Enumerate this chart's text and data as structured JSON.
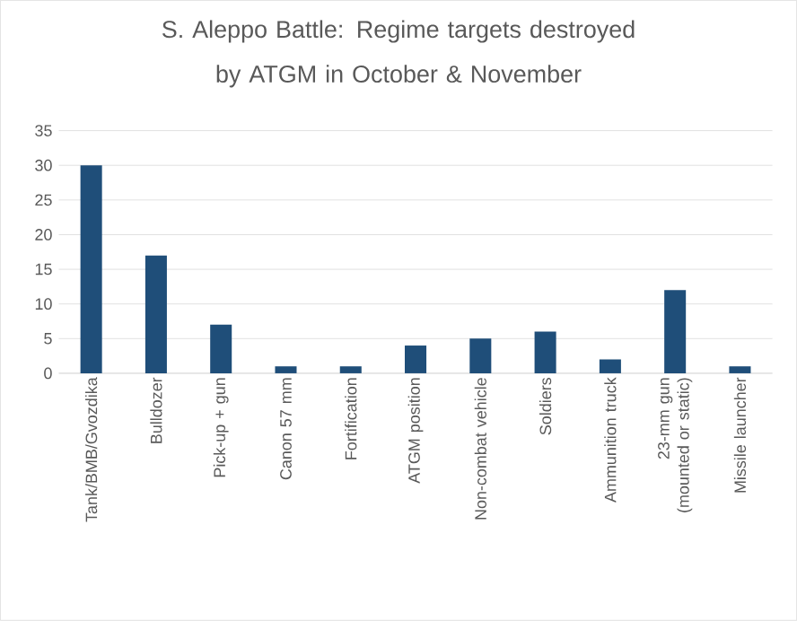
{
  "chart_data": {
    "type": "bar",
    "title": "S. Aleppo Battle: Regime targets destroyed by ATGM in October & November",
    "categories": [
      "Tank/BMB/Gvozdika",
      "Bulldozer",
      "Pick-up + gun",
      "Canon 57 mm",
      "Fortification",
      "ATGM position",
      "Non-combat vehicle",
      "Soldiers",
      "Ammunition truck",
      "23-mm gun (mounted or static)",
      "Missile launcher"
    ],
    "values": [
      30,
      17,
      7,
      1,
      1,
      4,
      5,
      6,
      2,
      12,
      1
    ],
    "color": "#1f4e79",
    "ylim": [
      0,
      35
    ],
    "yticks": [
      0,
      5,
      10,
      15,
      20,
      25,
      30,
      35
    ],
    "grid": "y"
  }
}
